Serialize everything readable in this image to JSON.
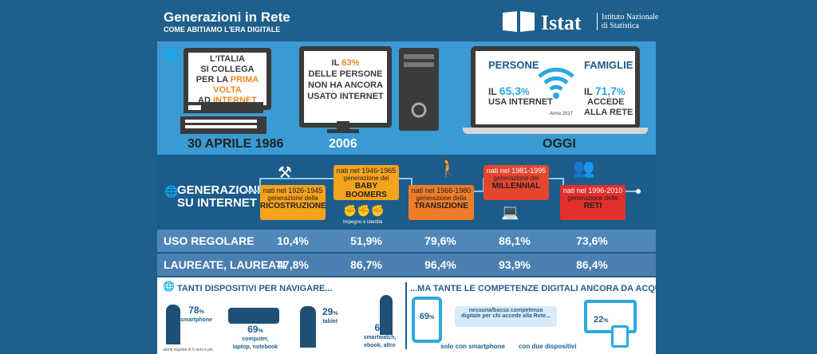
{
  "header": {
    "title": "Generazioni in Rete",
    "subtitle": "COME ABITIAMO L'ERA DIGITALE",
    "logo": "Istat",
    "institute_line1": "Istituto Nazionale",
    "institute_line2": "di Statistica"
  },
  "timeline": {
    "first_text_1": "L'ITALIA",
    "first_text_2": "SI COLLEGA",
    "first_text_3a": "PER LA ",
    "first_text_3b": "PRIMA VOLTA",
    "first_text_4a": "AD ",
    "first_text_4b": "INTERNET",
    "date1": "30 APRILE 1986",
    "second_text_1a": "IL ",
    "second_text_1b": "63",
    "second_text_1c": "%",
    "second_text_2": "DELLE PERSONE",
    "second_text_3": "NON HA ANCORA",
    "second_text_4": "USATO INTERNET",
    "date2": "2006",
    "persone_label": "PERSONE",
    "persone_pct_prefix": "IL ",
    "persone_pct": "65,3",
    "persone_pct_suffix": "%",
    "persone_text": "USA INTERNET",
    "famiglie_label": "FAMIGLIE",
    "famiglie_pct_prefix": "IL ",
    "famiglie_pct": "71,7",
    "famiglie_pct_suffix": "%",
    "famiglie_text_1": "ACCEDE",
    "famiglie_text_2": "ALLA RETE",
    "anno": "Anno 2017",
    "date3": "OGGI"
  },
  "generations": {
    "title_1": "GENERAZIONI",
    "title_2": "SU INTERNET",
    "items": [
      {
        "born": "nati nel 1926-1945",
        "gen": "generazione della",
        "name": "RICOSTRUZIONE",
        "color": "#f5a21d"
      },
      {
        "born": "nati nel 1946-1965",
        "gen": "generazione dei",
        "name": "BABY BOOMERS",
        "color": "#f5a21d"
      },
      {
        "born": "nati nel 1966-1980",
        "gen": "generazione della",
        "name": "TRANSIZIONE",
        "color": "#f07c2a"
      },
      {
        "born": "nati nel 1981-1995",
        "gen": "generazione dei",
        "name": "MILLENNIAL",
        "color": "#e5452e"
      },
      {
        "born": "nati nel 1996-2010",
        "gen": "generazione delle",
        "name": "RETI",
        "color": "#e22f2c"
      }
    ],
    "impegno": "Impegno e identità"
  },
  "rows": [
    {
      "label": "USO REGOLARE",
      "values": [
        "10,4%",
        "51,9%",
        "79,6%",
        "86,1%",
        "73,6%"
      ]
    },
    {
      "label": "LAUREATE, LAUREATI",
      "values": [
        "47,8%",
        "86,7%",
        "96,4%",
        "93,9%",
        "86,4%"
      ]
    }
  ],
  "devices": {
    "title_left": "TANTI DISPOSITIVI PER NAVIGARE...",
    "title_right": "...MA TANTE LE COMPETENZE DIGITALI ANCORA DA ACQUISIRE",
    "smartphone_pct": "78",
    "smartphone_label": "smartphone",
    "computer_pct": "69",
    "computer_label_1": "computer,",
    "computer_label_2": "laptop, notebook",
    "tablet_pct": "29",
    "tablet_label": "tablet",
    "watch_pct": "6",
    "watch_label_1": "smartwatch,",
    "watch_label_2": "ebook, altro",
    "note": "utenti regolari di 6 anni e più",
    "only_phone_pct": "69",
    "only_phone_label": "solo con smartphone",
    "competenza_1": "nessuna/bassa competenza",
    "competenza_2": "digitale per chi accede alla Rete...",
    "two_devices_pct": "22",
    "two_devices_label": "con due dispositivi",
    "pct_sign": "%"
  }
}
